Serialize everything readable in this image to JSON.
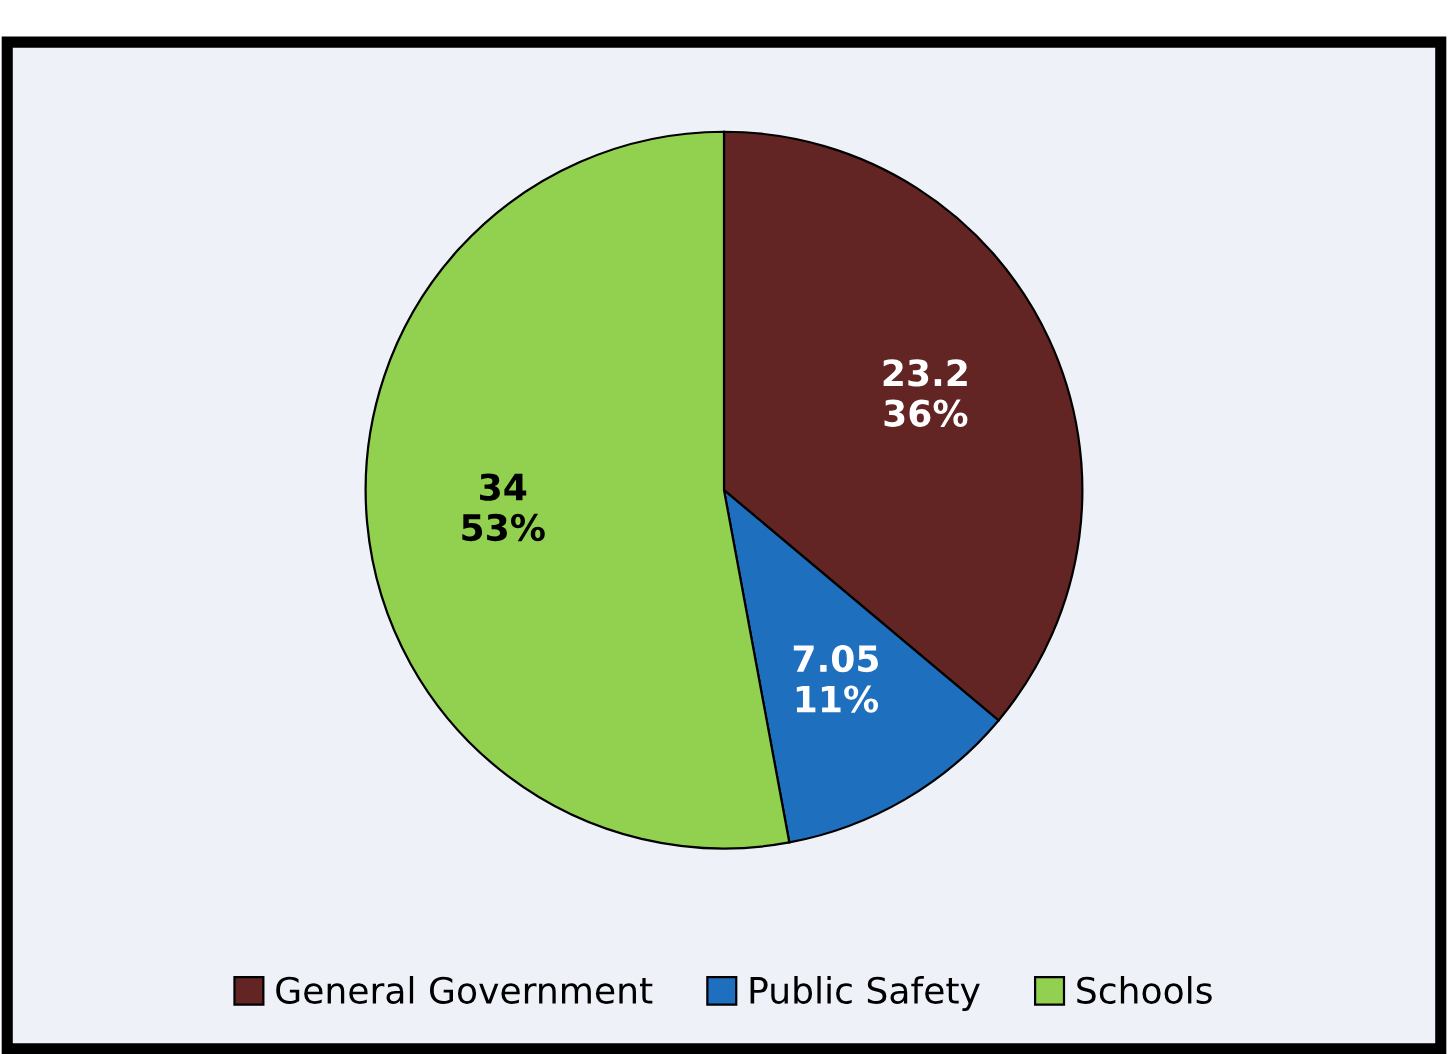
{
  "chart_data": {
    "type": "pie",
    "categories": [
      "General Government",
      "Public Safety",
      "Schools"
    ],
    "values": [
      23.2,
      7.05,
      34
    ],
    "colors": [
      "#632523",
      "#1f6fbf",
      "#92d050"
    ],
    "value_labels": [
      "23.2\n36%",
      "7.05\n11%",
      "34\n53%"
    ],
    "legend": "bottom"
  }
}
